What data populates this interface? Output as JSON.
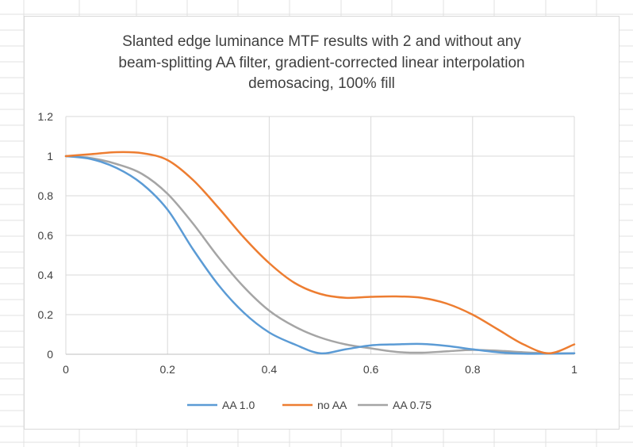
{
  "chart_data": {
    "type": "line",
    "title_lines": [
      "Slanted edge luminance MTF results with 2 and without any",
      "beam-splitting AA filter, gradient-corrected linear interpolation",
      "demosacing, 100% fill"
    ],
    "xlabel": "",
    "ylabel": "",
    "xlim": [
      0,
      1
    ],
    "ylim": [
      0,
      1.2
    ],
    "x_ticks": [
      "0",
      "0.2",
      "0.4",
      "0.6",
      "0.8",
      "1"
    ],
    "y_ticks": [
      "0",
      "0.2",
      "0.4",
      "0.6",
      "0.8",
      "1",
      "1.2"
    ],
    "grid": true,
    "legend_position": "bottom",
    "series": [
      {
        "name": "AA 1.0",
        "color": "#5b9bd5",
        "x": [
          0,
          0.05,
          0.1,
          0.15,
          0.2,
          0.25,
          0.3,
          0.35,
          0.4,
          0.45,
          0.5,
          0.55,
          0.6,
          0.65,
          0.7,
          0.75,
          0.8,
          0.85,
          0.9,
          0.95,
          1.0
        ],
        "y": [
          1.0,
          0.985,
          0.94,
          0.86,
          0.73,
          0.53,
          0.35,
          0.21,
          0.11,
          0.05,
          0.005,
          0.025,
          0.045,
          0.05,
          0.052,
          0.042,
          0.025,
          0.01,
          0.003,
          0.003,
          0.005
        ]
      },
      {
        "name": "no AA",
        "color": "#ed7d31",
        "x": [
          0,
          0.05,
          0.1,
          0.15,
          0.2,
          0.25,
          0.3,
          0.35,
          0.4,
          0.45,
          0.5,
          0.55,
          0.6,
          0.65,
          0.7,
          0.75,
          0.8,
          0.85,
          0.9,
          0.95,
          1.0
        ],
        "y": [
          1.0,
          1.01,
          1.02,
          1.015,
          0.98,
          0.88,
          0.74,
          0.59,
          0.46,
          0.36,
          0.305,
          0.285,
          0.29,
          0.292,
          0.285,
          0.255,
          0.2,
          0.125,
          0.05,
          0.005,
          0.05
        ]
      },
      {
        "name": "AA 0.75",
        "color": "#a5a5a5",
        "x": [
          0,
          0.05,
          0.1,
          0.15,
          0.2,
          0.25,
          0.3,
          0.35,
          0.4,
          0.45,
          0.5,
          0.55,
          0.6,
          0.65,
          0.7,
          0.75,
          0.8,
          0.85,
          0.9,
          0.95,
          1.0
        ],
        "y": [
          1.0,
          0.99,
          0.96,
          0.91,
          0.81,
          0.66,
          0.49,
          0.34,
          0.22,
          0.14,
          0.085,
          0.05,
          0.03,
          0.012,
          0.008,
          0.015,
          0.022,
          0.018,
          0.01,
          0.005,
          0.005
        ]
      }
    ]
  }
}
